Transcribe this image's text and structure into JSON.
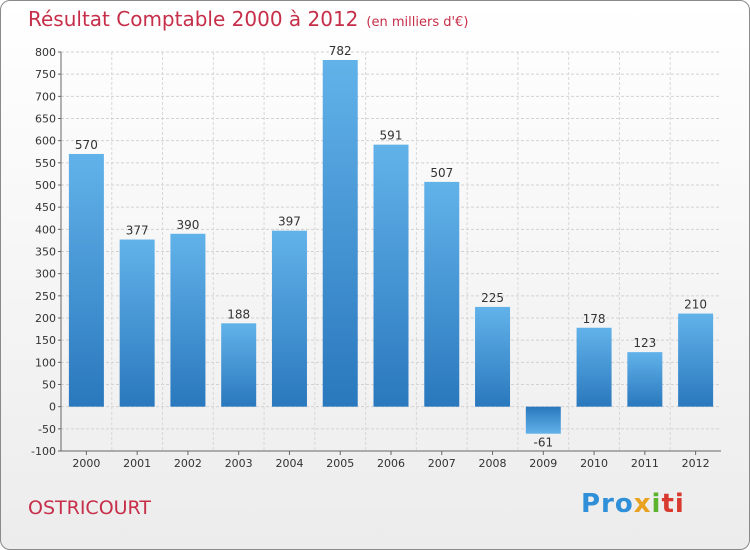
{
  "header": {
    "title": "Résultat Comptable 2000 à 2012",
    "subtitle": "(en milliers d'€)"
  },
  "footer": {
    "commune": "OSTRICOURT",
    "logo": {
      "p1": "Pro",
      "p2": "x",
      "p3": "i",
      "p4": "ti"
    }
  },
  "chart_data": {
    "type": "bar",
    "title": "Résultat Comptable 2000 à 2012",
    "subtitle": "(en milliers d'€)",
    "xlabel": "",
    "ylabel": "",
    "categories": [
      "2000",
      "2001",
      "2002",
      "2003",
      "2004",
      "2005",
      "2006",
      "2007",
      "2008",
      "2009",
      "2010",
      "2011",
      "2012"
    ],
    "values": [
      570,
      377,
      390,
      188,
      397,
      782,
      591,
      507,
      225,
      -61,
      178,
      123,
      210
    ],
    "ylim": [
      -100,
      800
    ],
    "yticks": [
      -100,
      -50,
      0,
      50,
      100,
      150,
      200,
      250,
      300,
      350,
      400,
      450,
      500,
      550,
      600,
      650,
      700,
      750,
      800
    ],
    "grid": true,
    "bar_color": "#4ea3e0"
  }
}
